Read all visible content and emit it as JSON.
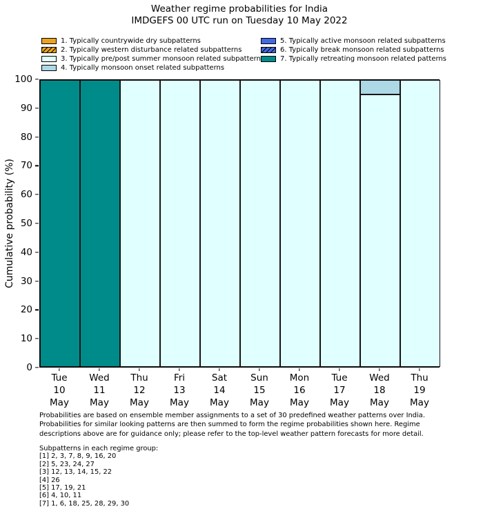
{
  "header": {
    "title": "Weather regime probabilities for India",
    "subtitle": "IMDGEFS 00 UTC run on Tuesday 10 May 2022"
  },
  "legend": {
    "items": [
      {
        "label": "1. Typically countrywide dry subpatterns",
        "color": "#eaa221",
        "hatch": false,
        "column": 0
      },
      {
        "label": "2. Typically western disturbance related subpatterns",
        "color": "#eaa221",
        "hatch": true,
        "column": 0
      },
      {
        "label": "3. Typically pre/post summer monsoon related subpatterns",
        "color": "#e0ffff",
        "hatch": false,
        "column": 0
      },
      {
        "label": "4. Typically monsoon onset related subpatterns",
        "color": "#add8e6",
        "hatch": false,
        "column": 0
      },
      {
        "label": "5. Typically active monsoon related subpatterns",
        "color": "#4169e1",
        "hatch": false,
        "column": 1
      },
      {
        "label": "6. Typically break monsoon related subpatterns",
        "color": "#4169e1",
        "hatch": true,
        "column": 1
      },
      {
        "label": "7. Typically retreating monsoon related patterns",
        "color": "#008b8b",
        "hatch": false,
        "column": 1
      }
    ]
  },
  "chart_data": {
    "type": "bar",
    "stacked": true,
    "title": "Weather regime probabilities for India",
    "subtitle": "IMDGEFS 00 UTC run on Tuesday 10 May 2022",
    "categories": [
      "Tue 10 May",
      "Wed 11 May",
      "Thu 12 May",
      "Fri 13 May",
      "Sat 14 May",
      "Sun 15 May",
      "Mon 16 May",
      "Tue 17 May",
      "Wed 18 May",
      "Thu 19 May"
    ],
    "series": [
      {
        "name": "1. Typically countrywide dry subpatterns",
        "color": "#eaa221",
        "values": [
          0,
          0,
          0,
          0,
          0,
          0,
          0,
          0,
          0,
          0
        ]
      },
      {
        "name": "2. Typically western disturbance related subpatterns",
        "color": "#eaa221",
        "values": [
          0,
          0,
          0,
          0,
          0,
          0,
          0,
          0,
          0,
          0
        ]
      },
      {
        "name": "3. Typically pre/post summer monsoon related subpatterns",
        "color": "#e0ffff",
        "values": [
          0,
          0,
          100,
          100,
          100,
          100,
          100,
          100,
          95,
          100
        ]
      },
      {
        "name": "4. Typically monsoon onset related subpatterns",
        "color": "#add8e6",
        "values": [
          0,
          0,
          0,
          0,
          0,
          0,
          0,
          0,
          5,
          0
        ]
      },
      {
        "name": "5. Typically active monsoon related subpatterns",
        "color": "#4169e1",
        "values": [
          0,
          0,
          0,
          0,
          0,
          0,
          0,
          0,
          0,
          0
        ]
      },
      {
        "name": "6. Typically break monsoon related subpatterns",
        "color": "#4169e1",
        "values": [
          0,
          0,
          0,
          0,
          0,
          0,
          0,
          0,
          0,
          0
        ]
      },
      {
        "name": "7. Typically retreating monsoon related patterns",
        "color": "#008b8b",
        "values": [
          100,
          100,
          0,
          0,
          0,
          0,
          0,
          0,
          0,
          0
        ]
      }
    ],
    "xlabel": "",
    "ylabel": "Cumulative probability (%)",
    "ylim": [
      0,
      100
    ],
    "yticks": [
      0,
      10,
      20,
      30,
      40,
      50,
      60,
      70,
      80,
      90,
      100
    ],
    "grid": false,
    "legend_position": "top"
  },
  "notes": {
    "disclaimer_lines": [
      "Probabilities are based on ensemble member assignments to a set of 30 predefined weather patterns over India.",
      "Probabilities for similar looking patterns are then summed to form the regime probabilities shown here. Regime",
      "descriptions above are for guidance only; please refer to the top-level weather pattern forecasts for more detail."
    ],
    "subpatterns_heading": "Subpatterns in each regime group:",
    "subpattern_lines": [
      "[1] 2, 3, 7, 8, 9, 16, 20",
      "[2] 5, 23, 24, 27",
      "[3] 12, 13, 14, 15, 22",
      "[4] 26",
      "[5] 17, 19, 21",
      "[6] 4, 10, 11",
      "[7] 1, 6, 18, 25, 28, 29, 30"
    ]
  },
  "colors": {
    "bar_edge": "#141414",
    "axis": "#000000",
    "background": "#ffffff"
  }
}
